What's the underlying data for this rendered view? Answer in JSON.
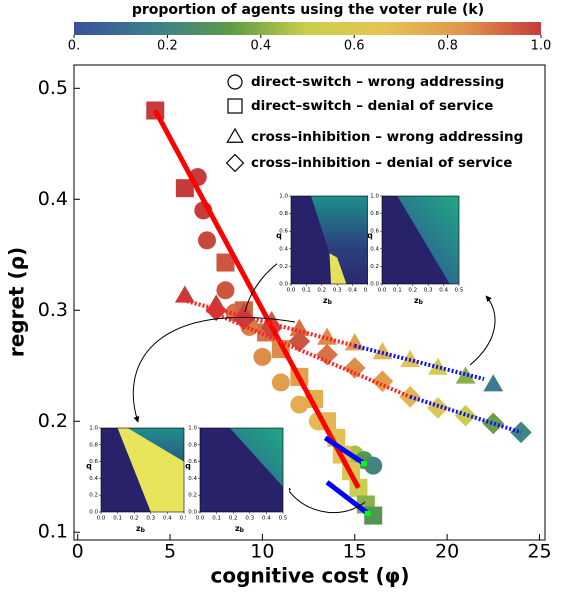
{
  "chart_data": {
    "type": "scatter",
    "xlabel": "cognitive cost (φ)",
    "ylabel": "regret (ρ)",
    "xlim": [
      -0.2,
      25.3
    ],
    "ylim": [
      0.093,
      0.521
    ],
    "xticks": [
      0,
      5,
      10,
      15,
      20,
      25
    ],
    "yticks": [
      0.1,
      0.2,
      0.3,
      0.4,
      0.5
    ],
    "colorbar": {
      "label": "proportion of agents using the voter rule (k)",
      "lim": [
        0,
        1
      ],
      "ticks": [
        {
          "value": 0,
          "label": "0."
        },
        0.2,
        0.4,
        0.6,
        0.8,
        {
          "value": 1,
          "label": "1.0"
        }
      ],
      "colormap": [
        "#3c4e9c",
        "#3b7f8e",
        "#5c9a46",
        "#c9cf4c",
        "#e6c354",
        "#e0964c",
        "#c63b3b"
      ]
    },
    "series": [
      {
        "name": "direct–switch – wrong addressing",
        "marker": "circle",
        "x": [
          6.5,
          6.8,
          7.0,
          8.0,
          8.5,
          9.3,
          10.0,
          11.0,
          12.0,
          13.0,
          14.0,
          15.0,
          15.5,
          16.0
        ],
        "y": [
          0.42,
          0.39,
          0.363,
          0.318,
          0.298,
          0.285,
          0.258,
          0.235,
          0.215,
          0.2,
          0.185,
          0.17,
          0.165,
          0.16
        ],
        "k": [
          1.0,
          1.0,
          0.98,
          0.95,
          0.9,
          0.88,
          0.85,
          0.8,
          0.75,
          0.7,
          0.6,
          0.45,
          0.3,
          0.2
        ]
      },
      {
        "name": "direct–switch – denial of service",
        "marker": "square",
        "x": [
          4.2,
          5.8,
          8.0,
          9.0,
          10.2,
          11.0,
          12.0,
          12.8,
          13.5,
          14.0,
          14.3,
          14.8,
          15.2,
          15.6,
          16.0
        ],
        "y": [
          0.48,
          0.41,
          0.343,
          0.3,
          0.28,
          0.265,
          0.24,
          0.22,
          0.2,
          0.185,
          0.17,
          0.155,
          0.14,
          0.125,
          0.115
        ],
        "k": [
          1.0,
          1.0,
          0.95,
          0.92,
          0.9,
          0.85,
          0.8,
          0.75,
          0.72,
          0.68,
          0.65,
          0.6,
          0.5,
          0.4,
          0.3
        ]
      },
      {
        "name": "cross–inhibition – wrong addressing",
        "marker": "triangle",
        "x": [
          5.8,
          7.5,
          9.0,
          10.5,
          12.0,
          13.5,
          15.0,
          16.5,
          18.0,
          19.5,
          21.0,
          22.5
        ],
        "y": [
          0.313,
          0.305,
          0.298,
          0.29,
          0.283,
          0.275,
          0.27,
          0.262,
          0.255,
          0.248,
          0.24,
          0.233
        ],
        "k": [
          1.0,
          1.0,
          0.98,
          0.95,
          0.9,
          0.85,
          0.8,
          0.72,
          0.65,
          0.55,
          0.4,
          0.15
        ]
      },
      {
        "name": "cross–inhibition – denial of service",
        "marker": "diamond",
        "x": [
          7.5,
          9.0,
          10.5,
          12.0,
          13.5,
          15.0,
          16.5,
          18.0,
          19.5,
          21.0,
          22.5,
          24.0
        ],
        "y": [
          0.3,
          0.292,
          0.284,
          0.272,
          0.26,
          0.248,
          0.236,
          0.222,
          0.212,
          0.205,
          0.198,
          0.19
        ],
        "k": [
          1.0,
          1.0,
          0.98,
          0.95,
          0.9,
          0.85,
          0.8,
          0.72,
          0.6,
          0.5,
          0.35,
          0.2
        ]
      }
    ],
    "fit_lines": [
      {
        "color": "#ff0000",
        "style": "solid",
        "x": [
          4.2,
          15.2
        ],
        "y": [
          0.48,
          0.14
        ]
      },
      {
        "color": "#0000ff",
        "style": "solid",
        "x": [
          13.5,
          15.7
        ],
        "y": [
          0.145,
          0.117
        ],
        "end_marker_color": "#00ff00"
      },
      {
        "color": "#0000ff",
        "style": "solid",
        "x": [
          13.4,
          15.5
        ],
        "y": [
          0.185,
          0.162
        ],
        "end_marker_color": "#00ff00"
      },
      {
        "color": "#ff2020",
        "style": "dotted",
        "x": [
          5.5,
          15.0
        ],
        "y": [
          0.31,
          0.268
        ]
      },
      {
        "color": "#1010ff",
        "style": "dotted",
        "x": [
          15.0,
          22.0
        ],
        "y": [
          0.268,
          0.238
        ]
      },
      {
        "color": "#ff2020",
        "style": "dotted",
        "x": [
          7.0,
          18.0
        ],
        "y": [
          0.3,
          0.222
        ]
      },
      {
        "color": "#1010ff",
        "style": "dotted",
        "x": [
          18.0,
          24.0
        ],
        "y": [
          0.222,
          0.19
        ]
      }
    ],
    "insets": {
      "xlabel": "z",
      "xlabel_subscript": "b",
      "ylabel": "q",
      "xlim": [
        0,
        0.5
      ],
      "ylim": [
        0,
        1
      ],
      "xticks": [
        {
          "value": 0,
          "label": "0.0"
        },
        0.1,
        0.2,
        0.3,
        0.4,
        0.5
      ],
      "yticks": [
        {
          "value": 0,
          "label": "0.0"
        },
        0.2,
        0.4,
        0.6,
        0.8,
        {
          "value": 1,
          "label": "1.0"
        }
      ]
    }
  }
}
